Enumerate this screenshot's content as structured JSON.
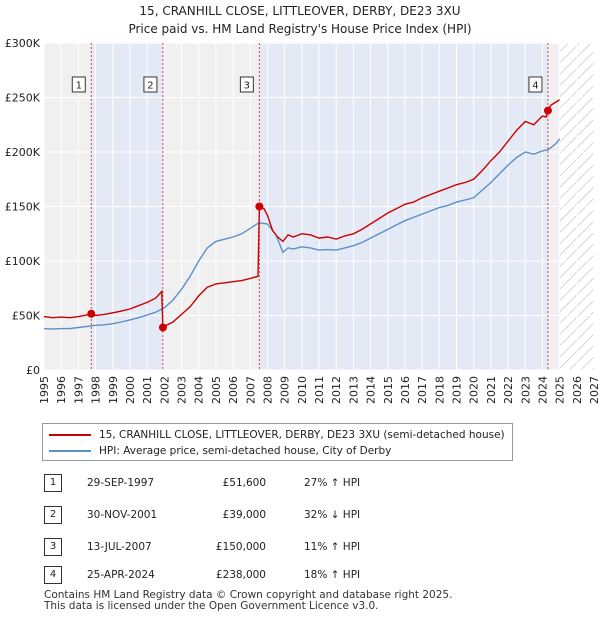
{
  "chart_data": {
    "type": "line",
    "title": "15, CRANHILL CLOSE, LITTLEOVER, DERBY, DE23 3XU",
    "subtitle": "Price paid vs. HM Land Registry's House Price Index (HPI)",
    "xlabel": "",
    "ylabel": "",
    "xlim": [
      1995,
      2027
    ],
    "ylim": [
      0,
      300000
    ],
    "x_ticks": [
      "1995",
      "1996",
      "1997",
      "1998",
      "1999",
      "2000",
      "2001",
      "2002",
      "2003",
      "2004",
      "2005",
      "2006",
      "2007",
      "2008",
      "2009",
      "2010",
      "2011",
      "2012",
      "2013",
      "2014",
      "2015",
      "2016",
      "2017",
      "2018",
      "2019",
      "2020",
      "2021",
      "2022",
      "2023",
      "2024",
      "2025",
      "2026",
      "2027"
    ],
    "y_ticks": [
      {
        "value": 0,
        "label": "£0"
      },
      {
        "value": 50000,
        "label": "£50K"
      },
      {
        "value": 100000,
        "label": "£100K"
      },
      {
        "value": 150000,
        "label": "£150K"
      },
      {
        "value": 200000,
        "label": "£200K"
      },
      {
        "value": 250000,
        "label": "£250K"
      },
      {
        "value": 300000,
        "label": "£300K"
      }
    ],
    "grid": true,
    "shaded_ownership_periods": [
      [
        1997.75,
        2001.92
      ],
      [
        2007.53,
        2024.32
      ]
    ],
    "future_hatch_from": 2025.0,
    "series": [
      {
        "name": "15, CRANHILL CLOSE, LITTLEOVER, DERBY, DE23 3XU (semi-detached house)",
        "color": "#cc0000",
        "x": [
          1995.0,
          1995.5,
          1996.0,
          1996.5,
          1997.0,
          1997.5,
          1997.75,
          1998.0,
          1998.5,
          1999.0,
          1999.5,
          2000.0,
          2000.5,
          2001.0,
          2001.5,
          2001.85,
          2001.92,
          2002.0,
          2002.5,
          2003.0,
          2003.5,
          2004.0,
          2004.5,
          2005.0,
          2005.5,
          2006.0,
          2006.5,
          2007.0,
          2007.45,
          2007.53,
          2007.8,
          2008.0,
          2008.3,
          2008.6,
          2008.9,
          2009.2,
          2009.5,
          2010.0,
          2010.5,
          2011.0,
          2011.5,
          2012.0,
          2012.5,
          2013.0,
          2013.5,
          2014.0,
          2014.5,
          2015.0,
          2015.5,
          2016.0,
          2016.5,
          2017.0,
          2017.5,
          2018.0,
          2018.5,
          2019.0,
          2019.5,
          2020.0,
          2020.5,
          2021.0,
          2021.5,
          2022.0,
          2022.5,
          2023.0,
          2023.5,
          2024.0,
          2024.2,
          2024.32,
          2024.5,
          2024.8,
          2025.0
        ],
        "y": [
          49000,
          48000,
          48500,
          48000,
          49000,
          50500,
          51600,
          50000,
          51000,
          52500,
          54000,
          56000,
          59000,
          62000,
          66000,
          72000,
          39000,
          40000,
          44000,
          51000,
          58000,
          68000,
          76000,
          79000,
          80000,
          81000,
          82000,
          84000,
          86000,
          150000,
          148000,
          142000,
          128000,
          122000,
          118000,
          124000,
          122000,
          125000,
          124000,
          121000,
          122000,
          120000,
          123000,
          125000,
          129000,
          134000,
          139000,
          144000,
          148000,
          152000,
          154000,
          158000,
          161000,
          164000,
          167000,
          170000,
          172000,
          175000,
          183000,
          192000,
          200000,
          210000,
          220000,
          228000,
          225000,
          233000,
          232000,
          238000,
          243000,
          246000,
          248000
        ]
      },
      {
        "name": "HPI: Average price, semi-detached house, City of Derby",
        "color": "#5b8fc7",
        "x": [
          1995.0,
          1995.5,
          1996.0,
          1996.5,
          1997.0,
          1997.5,
          1998.0,
          1998.5,
          1999.0,
          1999.5,
          2000.0,
          2000.5,
          2001.0,
          2001.5,
          2002.0,
          2002.5,
          2003.0,
          2003.5,
          2004.0,
          2004.5,
          2005.0,
          2005.5,
          2006.0,
          2006.5,
          2007.0,
          2007.5,
          2008.0,
          2008.5,
          2008.9,
          2009.2,
          2009.5,
          2010.0,
          2010.5,
          2011.0,
          2011.5,
          2012.0,
          2012.5,
          2013.0,
          2013.5,
          2014.0,
          2014.5,
          2015.0,
          2015.5,
          2016.0,
          2016.5,
          2017.0,
          2017.5,
          2018.0,
          2018.5,
          2019.0,
          2019.5,
          2020.0,
          2020.5,
          2021.0,
          2021.5,
          2022.0,
          2022.5,
          2023.0,
          2023.5,
          2024.0,
          2024.32,
          2024.5,
          2024.8,
          2025.0
        ],
        "y": [
          38000,
          37500,
          38000,
          38000,
          39000,
          40000,
          41000,
          41500,
          42500,
          44000,
          46000,
          48000,
          50500,
          53000,
          57000,
          64000,
          74000,
          86000,
          100000,
          112000,
          118000,
          120000,
          122000,
          125000,
          130000,
          135000,
          134000,
          124000,
          108000,
          112000,
          111000,
          113000,
          112000,
          110000,
          110500,
          110000,
          112000,
          114000,
          117000,
          121000,
          125000,
          129000,
          133000,
          137000,
          140000,
          143000,
          146000,
          149000,
          151000,
          154000,
          156000,
          158000,
          165000,
          172000,
          180000,
          188000,
          195000,
          200000,
          198000,
          201000,
          202000,
          204000,
          208000,
          212000
        ]
      }
    ],
    "annotations": [
      {
        "label": "1",
        "x": 1997.75,
        "y": 51600
      },
      {
        "label": "2",
        "x": 2001.92,
        "y": 39000
      },
      {
        "label": "3",
        "x": 2007.53,
        "y": 150000
      },
      {
        "label": "4",
        "x": 2024.32,
        "y": 238000
      }
    ]
  },
  "legend": {
    "property_label": "15, CRANHILL CLOSE, LITTLEOVER, DERBY, DE23 3XU (semi-detached house)",
    "hpi_label": "HPI: Average price, semi-detached house, City of Derby",
    "property_color": "#cc0000",
    "hpi_color": "#5b8fc7"
  },
  "sales": [
    {
      "num": "1",
      "date": "29-SEP-1997",
      "price": "£51,600",
      "hpi": "27% ↑ HPI"
    },
    {
      "num": "2",
      "date": "30-NOV-2001",
      "price": "£39,000",
      "hpi": "32% ↓ HPI"
    },
    {
      "num": "3",
      "date": "13-JUL-2007",
      "price": "£150,000",
      "hpi": "11% ↑ HPI"
    },
    {
      "num": "4",
      "date": "25-APR-2024",
      "price": "£238,000",
      "hpi": "18% ↑ HPI"
    }
  ],
  "footer": {
    "line1": "Contains HM Land Registry data © Crown copyright and database right 2025.",
    "line2": "This data is licensed under the Open Government Licence v3.0."
  }
}
